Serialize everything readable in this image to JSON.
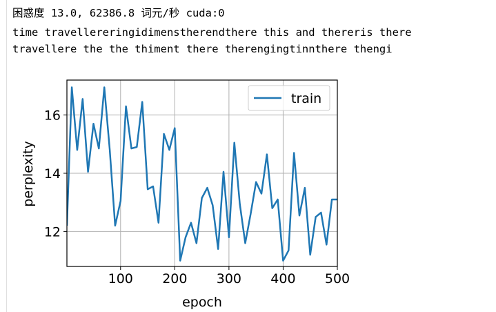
{
  "output": {
    "line1": "困惑度 13.0, 62386.8 词元/秒 cuda:0",
    "line2": "time travellereringidimenstherendthere this and thereris there",
    "line3": "travellere the the thiment there therengingtinnthere thengi"
  },
  "chart_data": {
    "type": "line",
    "xlabel": "epoch",
    "ylabel": "perplexity",
    "xlim": [
      1,
      500
    ],
    "ylim": [
      10.8,
      17.2
    ],
    "xticks": [
      100,
      200,
      300,
      400,
      500
    ],
    "yticks": [
      12,
      14,
      16
    ],
    "grid": true,
    "legend_position": "top-right",
    "series": [
      {
        "name": "train",
        "color": "#1f77b4",
        "x": [
          1,
          10,
          20,
          30,
          40,
          50,
          60,
          70,
          80,
          90,
          100,
          110,
          120,
          130,
          140,
          150,
          160,
          170,
          180,
          190,
          200,
          210,
          220,
          230,
          240,
          250,
          260,
          270,
          280,
          290,
          300,
          310,
          320,
          330,
          340,
          350,
          360,
          370,
          380,
          390,
          400,
          410,
          420,
          430,
          440,
          450,
          460,
          470,
          480,
          490,
          500
        ],
        "y": [
          12.2,
          16.95,
          14.8,
          16.55,
          14.05,
          15.7,
          14.85,
          16.95,
          14.8,
          12.2,
          13.05,
          16.3,
          14.85,
          14.9,
          16.45,
          13.45,
          13.55,
          12.3,
          15.35,
          14.8,
          15.55,
          11.0,
          11.8,
          12.3,
          11.6,
          13.15,
          13.5,
          12.9,
          11.4,
          14.05,
          11.8,
          15.05,
          12.95,
          11.6,
          12.6,
          13.7,
          13.3,
          14.65,
          12.8,
          13.1,
          11.0,
          11.35,
          14.7,
          12.55,
          13.5,
          11.2,
          12.5,
          12.65,
          11.55,
          13.1,
          13.1
        ]
      }
    ]
  }
}
